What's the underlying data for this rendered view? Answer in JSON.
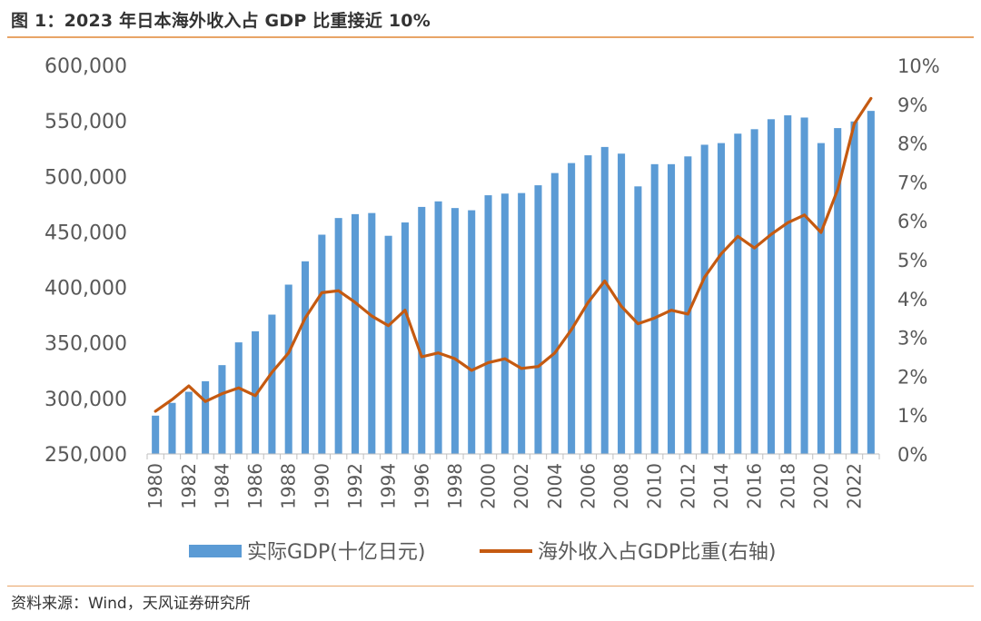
{
  "figure": {
    "title": "图 1：2023 年日本海外收入占 GDP 比重接近 10%",
    "source": "资料来源：Wind，天风证券研究所",
    "colors": {
      "bar": "#5b9bd5",
      "line": "#c55a11",
      "rule": "#e8a467",
      "text": "#595959"
    }
  },
  "chart_data": {
    "type": "bar",
    "title": "",
    "xlabel": "",
    "ylabel": "",
    "y2label": "",
    "categories": [
      1980,
      1981,
      1982,
      1983,
      1984,
      1985,
      1986,
      1987,
      1988,
      1989,
      1990,
      1991,
      1992,
      1993,
      1994,
      1995,
      1996,
      1997,
      1998,
      1999,
      2000,
      2001,
      2002,
      2003,
      2004,
      2005,
      2006,
      2007,
      2008,
      2009,
      2010,
      2011,
      2012,
      2013,
      2014,
      2015,
      2016,
      2017,
      2018,
      2019,
      2020,
      2021,
      2022,
      2023
    ],
    "x_tick_labels": [
      "1980",
      "1982",
      "1984",
      "1986",
      "1988",
      "1990",
      "1992",
      "1994",
      "1996",
      "1998",
      "2000",
      "2002",
      "2004",
      "2006",
      "2008",
      "2010",
      "2012",
      "2014",
      "2016",
      "2018",
      "2020",
      "2022"
    ],
    "y_left": {
      "ylim": [
        250000,
        600000
      ],
      "ticks": [
        "250,000",
        "300,000",
        "350,000",
        "400,000",
        "450,000",
        "500,000",
        "550,000",
        "600,000"
      ]
    },
    "y_right": {
      "ylim": [
        0,
        10
      ],
      "ticks": [
        "0%",
        "1%",
        "2%",
        "3%",
        "4%",
        "5%",
        "6%",
        "7%",
        "8%",
        "9%",
        "10%"
      ]
    },
    "series": [
      {
        "name": "实际GDP(十亿日元)",
        "type": "bar",
        "axis": "left",
        "values": [
          284500,
          296000,
          306000,
          315500,
          330000,
          350500,
          360500,
          375500,
          402500,
          423500,
          447500,
          462500,
          466000,
          467000,
          446500,
          458500,
          472500,
          477500,
          471500,
          469500,
          483000,
          484500,
          485000,
          492000,
          503000,
          512000,
          519000,
          526500,
          520500,
          491000,
          511000,
          511000,
          518000,
          528500,
          530000,
          538500,
          542500,
          551500,
          555000,
          553000,
          530000,
          543500,
          549500,
          559000
        ]
      },
      {
        "name": "海外收入占GDP比重(右轴)",
        "type": "line",
        "axis": "right",
        "values": [
          1.1,
          1.4,
          1.75,
          1.35,
          1.55,
          1.7,
          1.5,
          2.1,
          2.6,
          3.5,
          4.15,
          4.2,
          3.9,
          3.55,
          3.3,
          3.7,
          2.5,
          2.6,
          2.45,
          2.15,
          2.35,
          2.45,
          2.2,
          2.25,
          2.6,
          3.2,
          3.9,
          4.45,
          3.8,
          3.35,
          3.5,
          3.7,
          3.6,
          4.55,
          5.15,
          5.6,
          5.3,
          5.65,
          5.95,
          6.15,
          5.7,
          6.8,
          8.5,
          9.15
        ]
      }
    ],
    "legend_position": "bottom"
  }
}
